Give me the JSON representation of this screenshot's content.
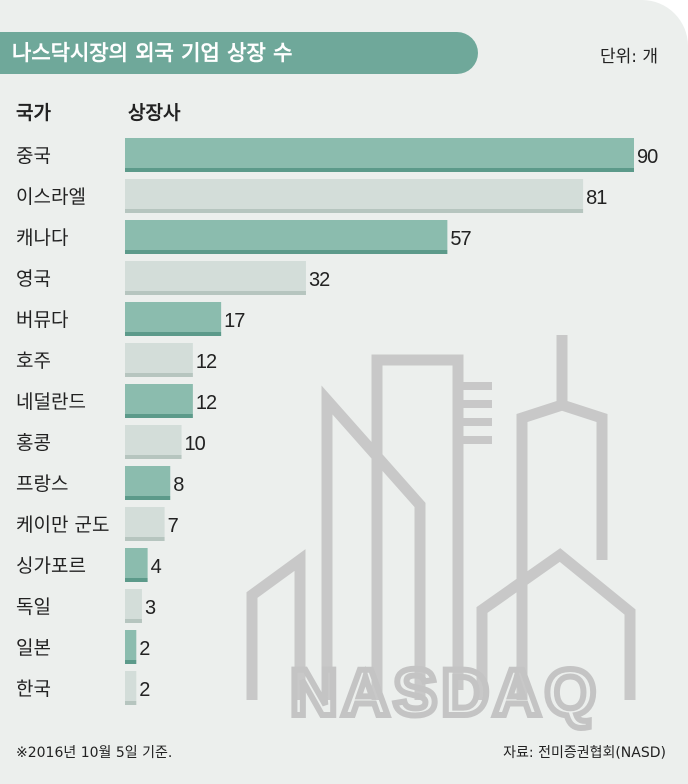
{
  "title": "나스닥시장의 외국 기업 상장 수",
  "unit": "단위: 개",
  "header": {
    "country": "국가",
    "count": "상장사"
  },
  "footnote": "※2016년 10월 5일 기준.",
  "source": "자료: 전미증권협회(NASD)",
  "watermark": {
    "text": "NASDAQ"
  },
  "colors": {
    "card_bg": "#ecefed",
    "title_bg": "#6fa89a",
    "bar_dark": "#8bbcae",
    "bar_dark_edge": "#5c9a8a",
    "bar_light": "#d3ddd9",
    "bar_light_edge": "#b6c5bf",
    "watermark": "#c8c8c8"
  },
  "chart_data": {
    "type": "bar",
    "orientation": "horizontal",
    "categories": [
      "중국",
      "이스라엘",
      "캐나다",
      "영국",
      "버뮤다",
      "호주",
      "네덜란드",
      "홍콩",
      "프랑스",
      "케이만 군도",
      "싱가포르",
      "독일",
      "일본",
      "한국"
    ],
    "values": [
      90,
      81,
      57,
      32,
      17,
      12,
      12,
      10,
      8,
      7,
      4,
      3,
      2,
      2
    ],
    "xlim": [
      0,
      90
    ],
    "grid": false,
    "legend": "none"
  }
}
